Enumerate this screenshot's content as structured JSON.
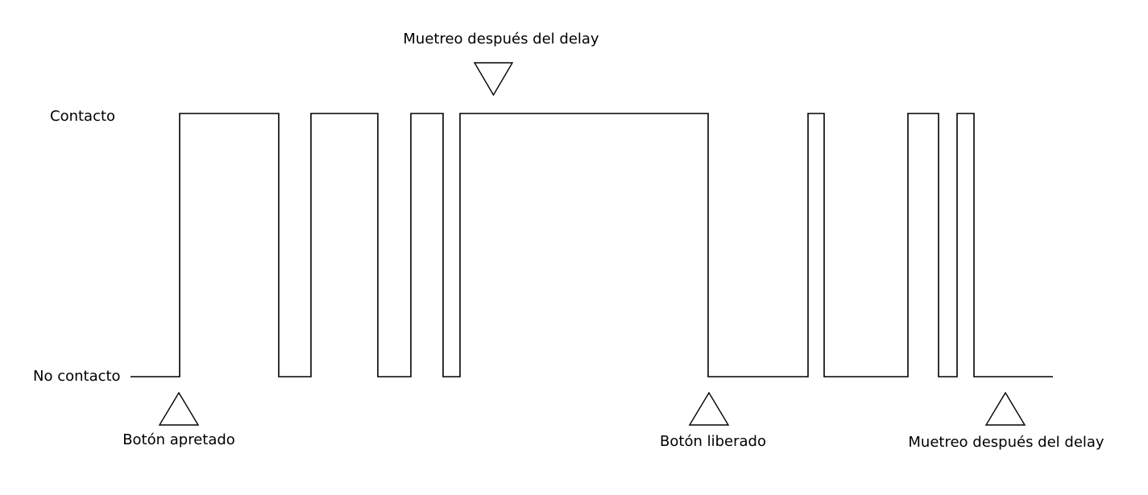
{
  "levels": {
    "high": "Contacto",
    "low": "No contacto"
  },
  "signal": {
    "states": [
      0,
      1,
      0,
      1,
      0,
      1,
      0,
      1,
      0,
      1,
      0,
      1,
      0,
      1,
      0
    ],
    "stroke_color": "#000000"
  },
  "annotations": {
    "sample_top": "Muetreo después del delay",
    "button_pressed": "Botón apretado",
    "button_released": "Botón liberado",
    "sample_bottom": "Muetreo después del delay"
  }
}
